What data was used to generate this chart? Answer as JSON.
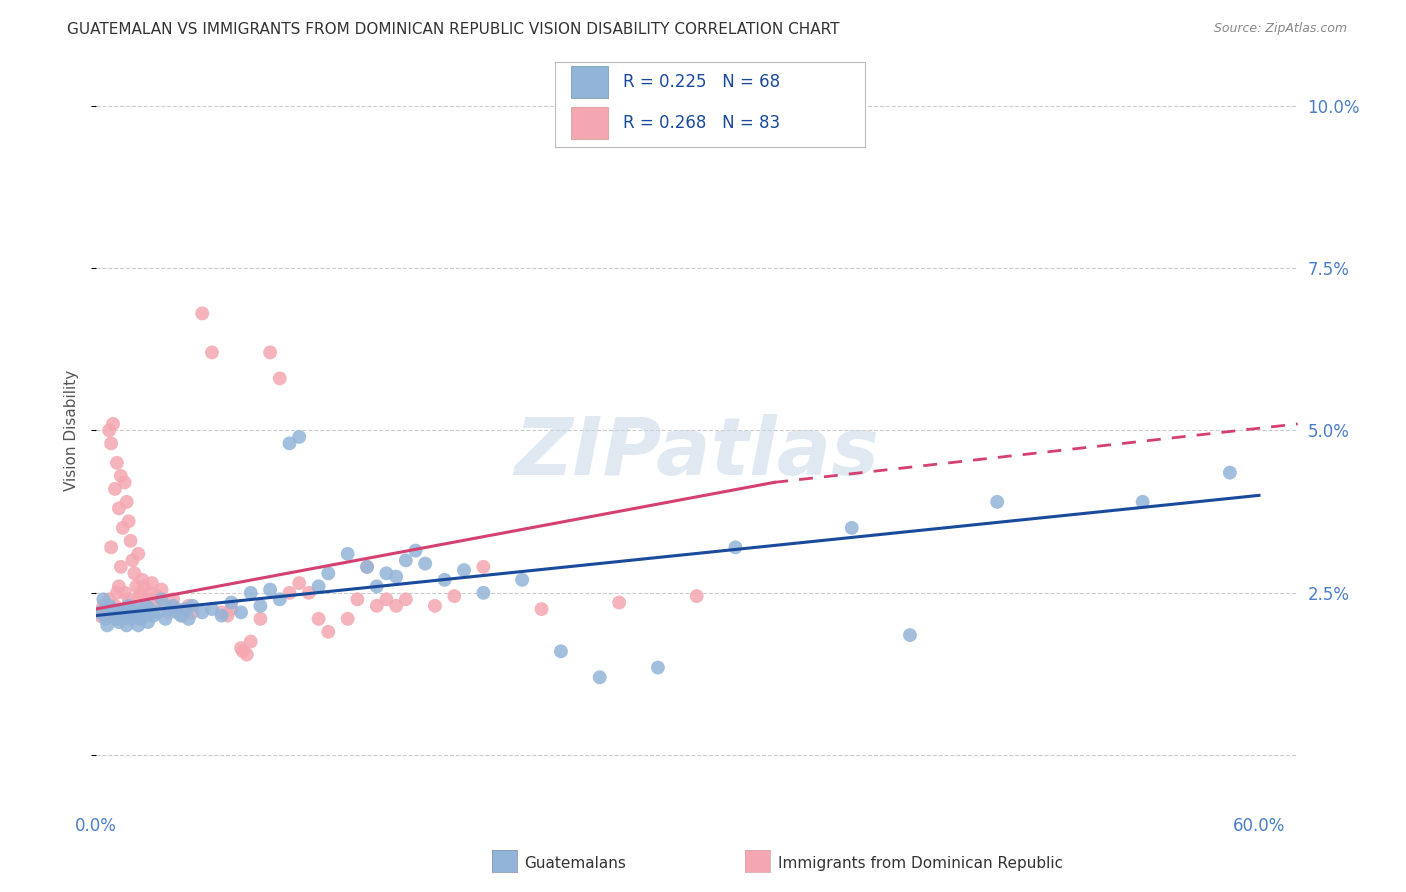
{
  "title": "GUATEMALAN VS IMMIGRANTS FROM DOMINICAN REPUBLIC VISION DISABILITY CORRELATION CHART",
  "source": "Source: ZipAtlas.com",
  "ylabel": "Vision Disability",
  "y_ticks": [
    0.0,
    0.025,
    0.05,
    0.075,
    0.1
  ],
  "y_tick_labels": [
    "",
    "2.5%",
    "5.0%",
    "7.5%",
    "10.0%"
  ],
  "x_ticks": [
    0.0,
    0.15,
    0.3,
    0.45,
    0.6
  ],
  "x_tick_labels": [
    "0.0%",
    "",
    "",
    "",
    "60.0%"
  ],
  "x_range": [
    0.0,
    0.62
  ],
  "y_range": [
    -0.008,
    0.108
  ],
  "legend_label_blue": "Guatemalans",
  "legend_label_pink": "Immigrants from Dominican Republic",
  "blue_color": "#92B4D8",
  "pink_color": "#F4A7B0",
  "blue_line_color": "#1A4A9B",
  "pink_line_color": "#D44070",
  "watermark": "ZIPatlas",
  "tick_color": "#4A7EC7",
  "blue_scatter": [
    [
      0.002,
      0.022
    ],
    [
      0.004,
      0.024
    ],
    [
      0.005,
      0.021
    ],
    [
      0.006,
      0.02
    ],
    [
      0.007,
      0.023
    ],
    [
      0.008,
      0.0215
    ],
    [
      0.009,
      0.0225
    ],
    [
      0.01,
      0.022
    ],
    [
      0.011,
      0.021
    ],
    [
      0.012,
      0.0205
    ],
    [
      0.013,
      0.022
    ],
    [
      0.014,
      0.0215
    ],
    [
      0.015,
      0.0225
    ],
    [
      0.016,
      0.02
    ],
    [
      0.017,
      0.023
    ],
    [
      0.018,
      0.021
    ],
    [
      0.019,
      0.022
    ],
    [
      0.02,
      0.0215
    ],
    [
      0.021,
      0.0225
    ],
    [
      0.022,
      0.02
    ],
    [
      0.023,
      0.021
    ],
    [
      0.024,
      0.022
    ],
    [
      0.025,
      0.0215
    ],
    [
      0.026,
      0.023
    ],
    [
      0.027,
      0.0205
    ],
    [
      0.028,
      0.0225
    ],
    [
      0.03,
      0.0215
    ],
    [
      0.032,
      0.022
    ],
    [
      0.034,
      0.024
    ],
    [
      0.036,
      0.021
    ],
    [
      0.038,
      0.0225
    ],
    [
      0.04,
      0.023
    ],
    [
      0.042,
      0.022
    ],
    [
      0.044,
      0.0215
    ],
    [
      0.046,
      0.0225
    ],
    [
      0.048,
      0.021
    ],
    [
      0.05,
      0.023
    ],
    [
      0.055,
      0.022
    ],
    [
      0.06,
      0.0225
    ],
    [
      0.065,
      0.0215
    ],
    [
      0.07,
      0.0235
    ],
    [
      0.075,
      0.022
    ],
    [
      0.08,
      0.025
    ],
    [
      0.085,
      0.023
    ],
    [
      0.09,
      0.0255
    ],
    [
      0.095,
      0.024
    ],
    [
      0.1,
      0.048
    ],
    [
      0.105,
      0.049
    ],
    [
      0.115,
      0.026
    ],
    [
      0.12,
      0.028
    ],
    [
      0.13,
      0.031
    ],
    [
      0.14,
      0.029
    ],
    [
      0.145,
      0.026
    ],
    [
      0.15,
      0.028
    ],
    [
      0.155,
      0.0275
    ],
    [
      0.16,
      0.03
    ],
    [
      0.165,
      0.0315
    ],
    [
      0.17,
      0.0295
    ],
    [
      0.18,
      0.027
    ],
    [
      0.19,
      0.0285
    ],
    [
      0.2,
      0.025
    ],
    [
      0.22,
      0.027
    ],
    [
      0.24,
      0.016
    ],
    [
      0.26,
      0.012
    ],
    [
      0.29,
      0.0135
    ],
    [
      0.33,
      0.032
    ],
    [
      0.39,
      0.035
    ],
    [
      0.42,
      0.0185
    ],
    [
      0.465,
      0.039
    ],
    [
      0.585,
      0.0435
    ],
    [
      0.54,
      0.039
    ]
  ],
  "pink_scatter": [
    [
      0.002,
      0.0215
    ],
    [
      0.003,
      0.022
    ],
    [
      0.004,
      0.023
    ],
    [
      0.005,
      0.0225
    ],
    [
      0.006,
      0.0215
    ],
    [
      0.007,
      0.024
    ],
    [
      0.007,
      0.05
    ],
    [
      0.008,
      0.048
    ],
    [
      0.008,
      0.032
    ],
    [
      0.009,
      0.022
    ],
    [
      0.009,
      0.051
    ],
    [
      0.01,
      0.041
    ],
    [
      0.01,
      0.023
    ],
    [
      0.011,
      0.045
    ],
    [
      0.011,
      0.025
    ],
    [
      0.012,
      0.038
    ],
    [
      0.012,
      0.026
    ],
    [
      0.013,
      0.029
    ],
    [
      0.013,
      0.043
    ],
    [
      0.014,
      0.035
    ],
    [
      0.014,
      0.021
    ],
    [
      0.015,
      0.042
    ],
    [
      0.015,
      0.025
    ],
    [
      0.016,
      0.039
    ],
    [
      0.016,
      0.022
    ],
    [
      0.017,
      0.036
    ],
    [
      0.017,
      0.024
    ],
    [
      0.018,
      0.033
    ],
    [
      0.018,
      0.0215
    ],
    [
      0.019,
      0.03
    ],
    [
      0.02,
      0.028
    ],
    [
      0.02,
      0.022
    ],
    [
      0.021,
      0.026
    ],
    [
      0.022,
      0.024
    ],
    [
      0.022,
      0.031
    ],
    [
      0.023,
      0.025
    ],
    [
      0.024,
      0.027
    ],
    [
      0.025,
      0.026
    ],
    [
      0.026,
      0.023
    ],
    [
      0.027,
      0.024
    ],
    [
      0.028,
      0.025
    ],
    [
      0.029,
      0.0265
    ],
    [
      0.03,
      0.023
    ],
    [
      0.032,
      0.0245
    ],
    [
      0.034,
      0.0255
    ],
    [
      0.036,
      0.023
    ],
    [
      0.038,
      0.022
    ],
    [
      0.04,
      0.024
    ],
    [
      0.042,
      0.0225
    ],
    [
      0.045,
      0.0215
    ],
    [
      0.048,
      0.023
    ],
    [
      0.05,
      0.022
    ],
    [
      0.055,
      0.068
    ],
    [
      0.06,
      0.062
    ],
    [
      0.065,
      0.022
    ],
    [
      0.068,
      0.0215
    ],
    [
      0.07,
      0.0225
    ],
    [
      0.075,
      0.0165
    ],
    [
      0.076,
      0.016
    ],
    [
      0.078,
      0.0155
    ],
    [
      0.08,
      0.0175
    ],
    [
      0.085,
      0.021
    ],
    [
      0.09,
      0.062
    ],
    [
      0.095,
      0.058
    ],
    [
      0.1,
      0.025
    ],
    [
      0.105,
      0.0265
    ],
    [
      0.11,
      0.025
    ],
    [
      0.115,
      0.021
    ],
    [
      0.12,
      0.019
    ],
    [
      0.13,
      0.021
    ],
    [
      0.135,
      0.024
    ],
    [
      0.14,
      0.029
    ],
    [
      0.145,
      0.023
    ],
    [
      0.15,
      0.024
    ],
    [
      0.155,
      0.023
    ],
    [
      0.16,
      0.024
    ],
    [
      0.175,
      0.023
    ],
    [
      0.185,
      0.0245
    ],
    [
      0.2,
      0.029
    ],
    [
      0.23,
      0.0225
    ],
    [
      0.27,
      0.0235
    ],
    [
      0.31,
      0.0245
    ]
  ],
  "blue_line": [
    [
      0.0,
      0.0215
    ],
    [
      0.6,
      0.04
    ]
  ],
  "pink_line_solid": [
    [
      0.0,
      0.0225
    ],
    [
      0.35,
      0.042
    ]
  ],
  "pink_line_dashed": [
    [
      0.35,
      0.042
    ],
    [
      0.62,
      0.051
    ]
  ]
}
